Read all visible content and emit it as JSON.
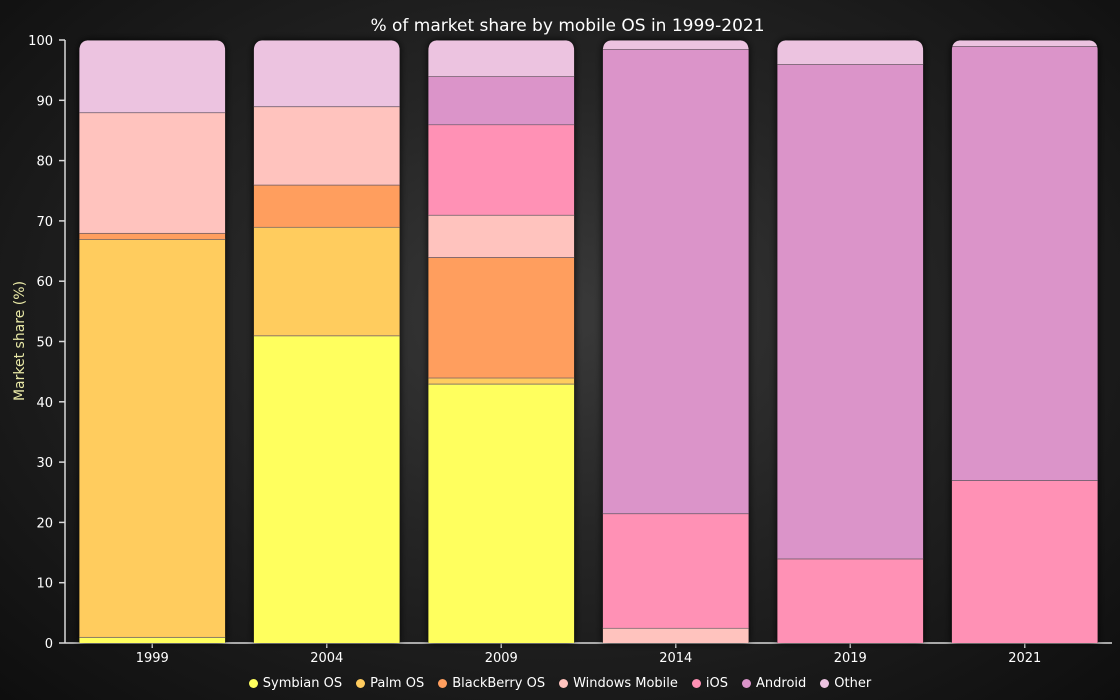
{
  "chart_data": {
    "type": "bar",
    "stacked": true,
    "title": "% of market share by mobile OS in 1999-2021",
    "xlabel": "",
    "ylabel": "Market share (%)",
    "ylim": [
      0,
      100
    ],
    "yticks": [
      0,
      10,
      20,
      30,
      40,
      50,
      60,
      70,
      80,
      90,
      100
    ],
    "categories": [
      "1999",
      "2004",
      "2009",
      "2014",
      "2019",
      "2021"
    ],
    "legend_position": "bottom",
    "grid": false,
    "series": [
      {
        "name": "Symbian OS",
        "color": "#ffff5e",
        "values": [
          1,
          51,
          43,
          0,
          0,
          0
        ]
      },
      {
        "name": "Palm OS",
        "color": "#ffcc5e",
        "values": [
          66,
          18,
          1,
          0,
          0,
          0
        ]
      },
      {
        "name": "BlackBerry OS",
        "color": "#ff9e5e",
        "values": [
          1,
          7,
          20,
          0,
          0,
          0
        ]
      },
      {
        "name": "Windows Mobile",
        "color": "#ffc3be",
        "values": [
          20,
          13,
          7,
          2.5,
          0,
          0
        ]
      },
      {
        "name": "iOS",
        "color": "#ff91b5",
        "values": [
          0,
          0,
          15,
          19,
          14,
          27
        ]
      },
      {
        "name": "Android",
        "color": "#db94c9",
        "values": [
          0,
          0,
          8,
          77,
          82,
          72
        ]
      },
      {
        "name": "Other",
        "color": "#ecc3e0",
        "values": [
          12,
          11,
          6,
          1.5,
          4,
          1
        ]
      }
    ]
  }
}
